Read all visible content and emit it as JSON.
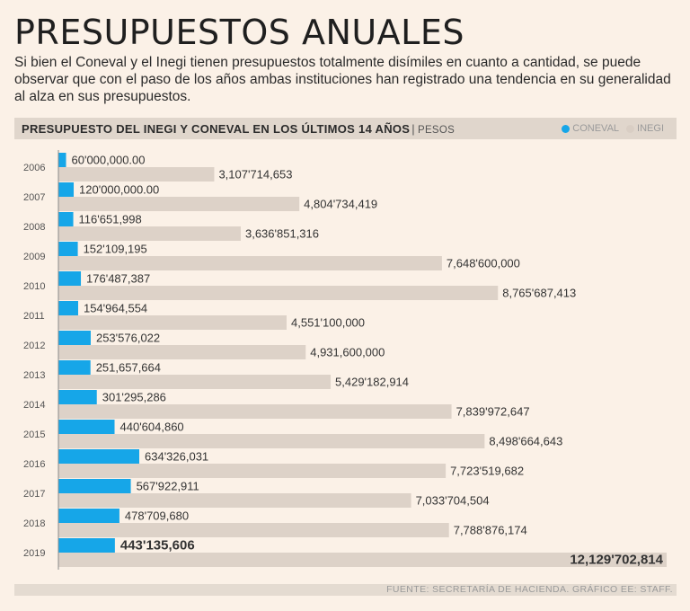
{
  "title": "PRESUPUESTOS ANUALES",
  "subtitle": "Si bien el Coneval y el Inegi tienen presupuestos totalmente disímiles en cuanto a cantidad, se puede observar que con el paso de los años ambas instituciones han registrado una tendencia en su generalidad al alza en sus presupuestos.",
  "chart_heading": "PRESUPUESTO DEL INEGI Y CONEVAL EN LOS ÚLTIMOS 14 AÑOS",
  "chart_unit": "PESOS",
  "source": "FUENTE: SECRETARÍA DE HACIENDA. GRÁFICO EE: STAFF.",
  "colors": {
    "coneval": "#16a6e8",
    "inegi": "#ddd2c8",
    "background": "#fbf1e7"
  },
  "chart_data": {
    "type": "bar",
    "orientation": "horizontal",
    "title": "PRESUPUESTO DEL INEGI Y CONEVAL EN LOS ÚLTIMOS 14 AÑOS",
    "unit": "PESOS",
    "categories": [
      "2006",
      "2007",
      "2008",
      "2009",
      "2010",
      "2011",
      "2012",
      "2013",
      "2014",
      "2015",
      "2016",
      "2017",
      "2018",
      "2019"
    ],
    "legend_position": "top-right",
    "series": [
      {
        "name": "CONEVAL",
        "values": [
          60000000,
          120000000,
          116651998,
          152109195,
          176487387,
          154964554,
          253576022,
          251657664,
          301295286,
          440604860,
          634326031,
          567922911,
          478709680,
          443135606
        ],
        "labels": [
          "60'000,000.00",
          "120'000,000.00",
          "116'651,998",
          "152'109,195",
          "176'487,387",
          "154'964,554",
          "253'576,022",
          "251,657,664",
          "301'295,286",
          "440'604,860",
          "634'326,031",
          "567'922,911",
          "478'709,680",
          "443'135,606"
        ]
      },
      {
        "name": "INEGI",
        "values": [
          3107714653,
          4804734419,
          3636851316,
          7648600000,
          8765687413,
          4551100000,
          4931600000,
          5429182914,
          7839972647,
          8498664643,
          7723519682,
          7033704504,
          7788876174,
          12129702814
        ],
        "labels": [
          "3,107'714,653",
          "4,804'734,419",
          "3,636'851,316",
          "7,648'600,000",
          "8,765'687,413",
          "4,551'100,000",
          "4,931,600,000",
          "5,429'182,914",
          "7,839'972,647",
          "8,498'664,643",
          "7,723'519,682",
          "7,033'704,504",
          "7,788'876,174",
          "12,129'702,814"
        ]
      }
    ]
  }
}
